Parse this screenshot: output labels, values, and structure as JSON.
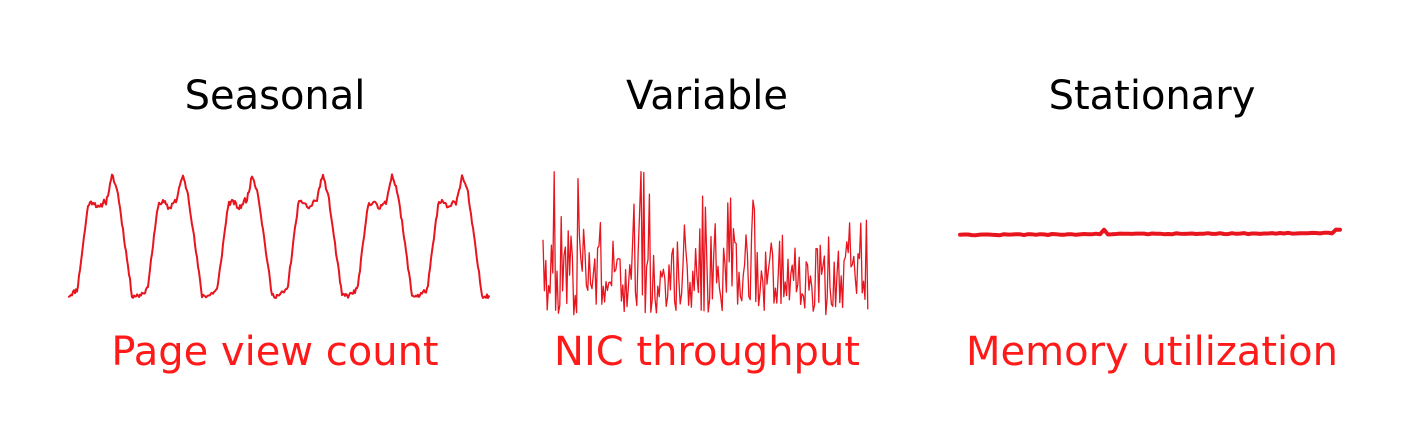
{
  "panels": [
    {
      "title": "Seasonal",
      "caption": "Page view count"
    },
    {
      "title": "Variable",
      "caption": "NIC throughput"
    },
    {
      "title": "Stationary",
      "caption": "Memory utilization"
    }
  ],
  "colors": {
    "title_text": "#000000",
    "caption_text": "#ff1a1a",
    "trace_line": "#e8141e"
  }
}
